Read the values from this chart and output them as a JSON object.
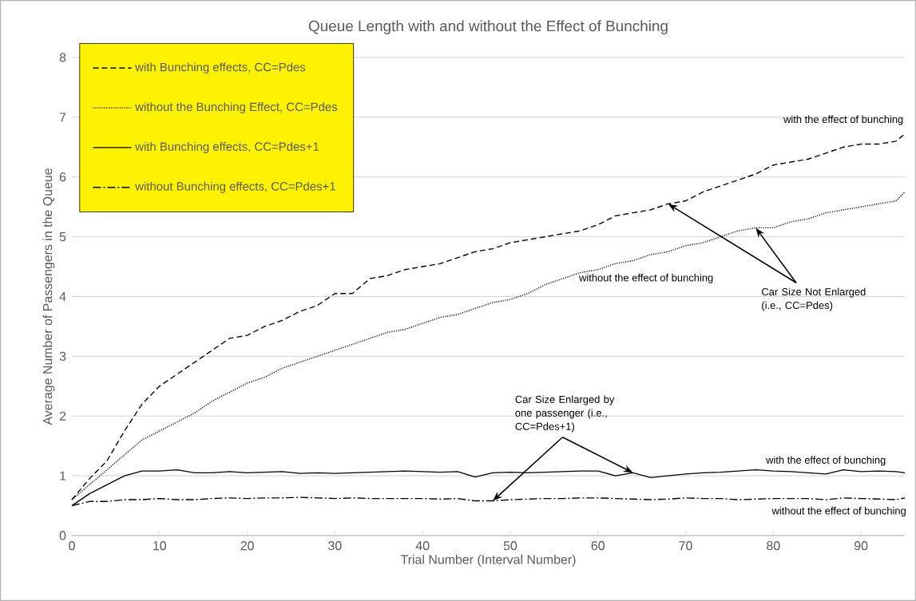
{
  "chart_data": {
    "type": "line",
    "title": "Queue Length with and without the Effect of Bunching",
    "xlabel": "Trial Number (Interval Number)",
    "ylabel": "Average Number of Passengers in the Queue",
    "x": [
      0,
      2,
      4,
      6,
      8,
      10,
      12,
      14,
      16,
      18,
      20,
      22,
      24,
      26,
      28,
      30,
      32,
      34,
      36,
      38,
      40,
      42,
      44,
      46,
      48,
      50,
      52,
      54,
      56,
      58,
      60,
      62,
      64,
      66,
      68,
      70,
      72,
      74,
      76,
      78,
      80,
      82,
      84,
      86,
      88,
      90,
      92,
      94,
      95
    ],
    "series": [
      {
        "name": "with Bunching effects, CC=Pdes",
        "color": "#000000",
        "line_style": "dashed",
        "values": [
          0.6,
          0.95,
          1.25,
          1.75,
          2.2,
          2.5,
          2.7,
          2.9,
          3.1,
          3.3,
          3.35,
          3.5,
          3.6,
          3.75,
          3.85,
          4.05,
          4.05,
          4.3,
          4.35,
          4.45,
          4.5,
          4.55,
          4.65,
          4.75,
          4.8,
          4.9,
          4.95,
          5.0,
          5.05,
          5.1,
          5.2,
          5.35,
          5.4,
          5.45,
          5.55,
          5.6,
          5.75,
          5.85,
          5.95,
          6.05,
          6.2,
          6.25,
          6.3,
          6.4,
          6.5,
          6.55,
          6.55,
          6.6,
          6.72
        ]
      },
      {
        "name": "without the Bunching Effect, CC=Pdes",
        "color": "#000000",
        "line_style": "dotted",
        "values": [
          0.6,
          0.85,
          1.1,
          1.35,
          1.6,
          1.75,
          1.9,
          2.05,
          2.25,
          2.4,
          2.55,
          2.65,
          2.8,
          2.9,
          3.0,
          3.1,
          3.2,
          3.3,
          3.4,
          3.45,
          3.55,
          3.65,
          3.7,
          3.8,
          3.9,
          3.95,
          4.05,
          4.2,
          4.3,
          4.4,
          4.45,
          4.55,
          4.6,
          4.7,
          4.75,
          4.85,
          4.9,
          5.0,
          5.1,
          5.15,
          5.15,
          5.25,
          5.3,
          5.4,
          5.45,
          5.5,
          5.55,
          5.6,
          5.75
        ]
      },
      {
        "name": "with Bunching effects, CC=Pdes+1",
        "color": "#000000",
        "line_style": "solid",
        "values": [
          0.5,
          0.7,
          0.85,
          1.0,
          1.08,
          1.08,
          1.1,
          1.05,
          1.05,
          1.07,
          1.05,
          1.06,
          1.07,
          1.04,
          1.05,
          1.04,
          1.05,
          1.06,
          1.07,
          1.08,
          1.07,
          1.06,
          1.07,
          0.98,
          1.05,
          1.06,
          1.05,
          1.06,
          1.07,
          1.08,
          1.08,
          1.0,
          1.05,
          0.97,
          1.0,
          1.03,
          1.05,
          1.06,
          1.08,
          1.1,
          1.08,
          1.07,
          1.05,
          1.03,
          1.1,
          1.07,
          1.08,
          1.07,
          1.05
        ]
      },
      {
        "name": "without Bunching effects, CC=Pdes+1",
        "color": "#000000",
        "line_style": "dashdot",
        "values": [
          0.5,
          0.57,
          0.57,
          0.6,
          0.6,
          0.62,
          0.6,
          0.6,
          0.62,
          0.63,
          0.62,
          0.63,
          0.63,
          0.64,
          0.63,
          0.62,
          0.63,
          0.62,
          0.62,
          0.62,
          0.62,
          0.61,
          0.62,
          0.58,
          0.58,
          0.6,
          0.61,
          0.62,
          0.62,
          0.63,
          0.63,
          0.62,
          0.61,
          0.6,
          0.61,
          0.63,
          0.62,
          0.62,
          0.6,
          0.61,
          0.62,
          0.62,
          0.62,
          0.6,
          0.63,
          0.62,
          0.61,
          0.6,
          0.63
        ]
      }
    ],
    "xlim": [
      0,
      95
    ],
    "ylim": [
      0,
      8
    ],
    "xticks": [
      0,
      10,
      20,
      30,
      40,
      50,
      60,
      70,
      80,
      90
    ],
    "yticks": [
      0,
      1,
      2,
      3,
      4,
      5,
      6,
      7,
      8
    ],
    "grid": "y",
    "legend": "top left",
    "annotations": [
      "with the effect of bunching",
      "without the effect of bunching",
      {
        "text": "Car Size Not Enlarged (i.e., CC=Pdes)",
        "x": 68,
        "y": 5.55
      },
      {
        "text": "Car Size  Enlarged by one passenger (i.e., CC=Pdes+1)",
        "x": 64,
        "y": 1.05
      },
      "with the effect of bunching",
      "without the effect of bunching"
    ]
  }
}
